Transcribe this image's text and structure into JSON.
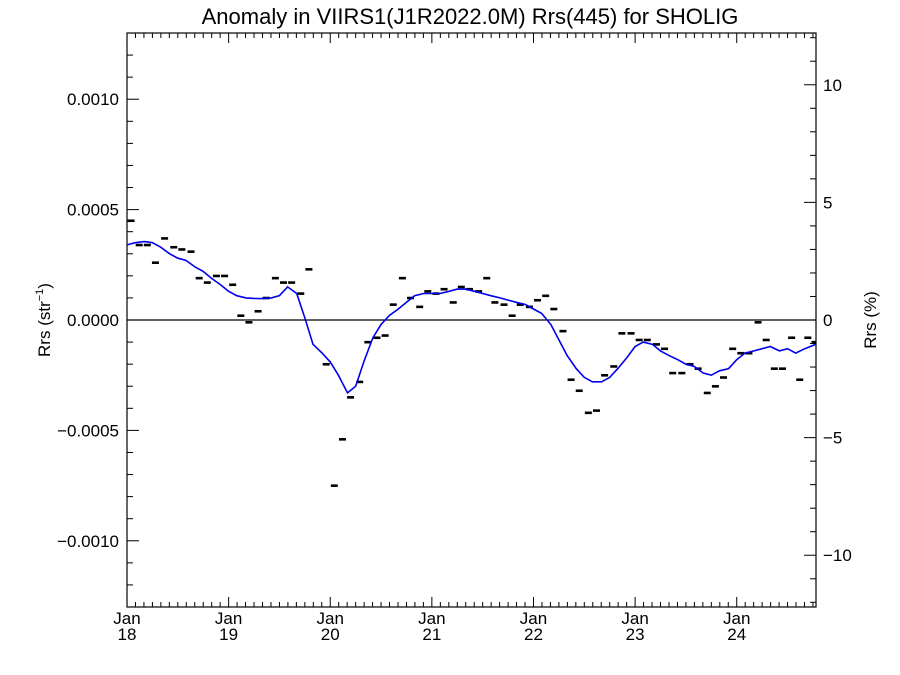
{
  "chart_data": {
    "type": "scatter",
    "title": "Anomaly in VIIRS1(J1R2022.0M) Rrs(445) for SHOLIG",
    "ylabel_left_base": "Rrs (str",
    "ylabel_left_sup": "−1",
    "ylabel_left_tail": ")",
    "ylabel_right": "Rrs (%)",
    "xlim": [
      2018.0,
      2024.78
    ],
    "ylim_left": [
      -0.0013,
      0.0013
    ],
    "ylim_right": [
      -12.2,
      12.2
    ],
    "x_ticks": [
      {
        "value": 2018,
        "month": "Jan",
        "year": "18"
      },
      {
        "value": 2019,
        "month": "Jan",
        "year": "19"
      },
      {
        "value": 2020,
        "month": "Jan",
        "year": "20"
      },
      {
        "value": 2021,
        "month": "Jan",
        "year": "21"
      },
      {
        "value": 2022,
        "month": "Jan",
        "year": "22"
      },
      {
        "value": 2023,
        "month": "Jan",
        "year": "23"
      },
      {
        "value": 2024,
        "month": "Jan",
        "year": "24"
      }
    ],
    "y_ticks_left": [
      {
        "value": 0.001,
        "label": "0.0010"
      },
      {
        "value": 0.0005,
        "label": "0.0005"
      },
      {
        "value": 0.0,
        "label": "0.0000"
      },
      {
        "value": -0.0005,
        "label": "−0.0005"
      },
      {
        "value": -0.001,
        "label": "−0.0010"
      }
    ],
    "y_ticks_right": [
      {
        "value": 10,
        "label": "10"
      },
      {
        "value": 5,
        "label": "5"
      },
      {
        "value": 0,
        "label": "0"
      },
      {
        "value": -5,
        "label": "−5"
      },
      {
        "value": -10,
        "label": "−10"
      }
    ],
    "zero_line": 0,
    "colors": {
      "points": "#000000",
      "smooth": "#0000ee",
      "zero": "#000000",
      "axes": "#000000"
    },
    "series": [
      {
        "kind": "points",
        "points": [
          [
            2018.04,
            0.00045
          ],
          [
            2018.12,
            0.00034
          ],
          [
            2018.2,
            0.00034
          ],
          [
            2018.28,
            0.00026
          ],
          [
            2018.37,
            0.00037
          ],
          [
            2018.46,
            0.00033
          ],
          [
            2018.54,
            0.00032
          ],
          [
            2018.63,
            0.00031
          ],
          [
            2018.71,
            0.00019
          ],
          [
            2018.79,
            0.00017
          ],
          [
            2018.88,
            0.0002
          ],
          [
            2018.96,
            0.0002
          ],
          [
            2019.04,
            0.00016
          ],
          [
            2019.12,
            2e-05
          ],
          [
            2019.2,
            -1e-05
          ],
          [
            2019.29,
            4e-05
          ],
          [
            2019.37,
            0.0001
          ],
          [
            2019.46,
            0.00019
          ],
          [
            2019.54,
            0.00017
          ],
          [
            2019.62,
            0.00017
          ],
          [
            2019.71,
            0.00012
          ],
          [
            2019.79,
            0.00023
          ],
          [
            2019.96,
            -0.0002
          ],
          [
            2020.04,
            -0.00075
          ],
          [
            2020.12,
            -0.00054
          ],
          [
            2020.2,
            -0.00035
          ],
          [
            2020.29,
            -0.00028
          ],
          [
            2020.37,
            -0.0001
          ],
          [
            2020.46,
            -8e-05
          ],
          [
            2020.54,
            -7e-05
          ],
          [
            2020.62,
            7e-05
          ],
          [
            2020.71,
            0.00019
          ],
          [
            2020.79,
            0.0001
          ],
          [
            2020.88,
            6e-05
          ],
          [
            2020.96,
            0.00013
          ],
          [
            2021.04,
            0.00012
          ],
          [
            2021.12,
            0.00014
          ],
          [
            2021.21,
            8e-05
          ],
          [
            2021.29,
            0.00015
          ],
          [
            2021.37,
            0.00014
          ],
          [
            2021.46,
            0.00013
          ],
          [
            2021.54,
            0.00019
          ],
          [
            2021.62,
            8e-05
          ],
          [
            2021.71,
            7e-05
          ],
          [
            2021.79,
            2e-05
          ],
          [
            2021.87,
            7e-05
          ],
          [
            2021.96,
            6e-05
          ],
          [
            2022.04,
            9e-05
          ],
          [
            2022.12,
            0.00011
          ],
          [
            2022.2,
            5e-05
          ],
          [
            2022.29,
            -5e-05
          ],
          [
            2022.37,
            -0.00027
          ],
          [
            2022.45,
            -0.00032
          ],
          [
            2022.54,
            -0.00042
          ],
          [
            2022.62,
            -0.00041
          ],
          [
            2022.7,
            -0.00025
          ],
          [
            2022.79,
            -0.00021
          ],
          [
            2022.87,
            -6e-05
          ],
          [
            2022.96,
            -6e-05
          ],
          [
            2023.04,
            -9e-05
          ],
          [
            2023.12,
            -9e-05
          ],
          [
            2023.21,
            -0.00011
          ],
          [
            2023.29,
            -0.00013
          ],
          [
            2023.37,
            -0.00024
          ],
          [
            2023.46,
            -0.00024
          ],
          [
            2023.54,
            -0.0002
          ],
          [
            2023.62,
            -0.00022
          ],
          [
            2023.71,
            -0.00033
          ],
          [
            2023.79,
            -0.0003
          ],
          [
            2023.87,
            -0.00026
          ],
          [
            2023.96,
            -0.00013
          ],
          [
            2024.04,
            -0.00015
          ],
          [
            2024.12,
            -0.00015
          ],
          [
            2024.21,
            -1e-05
          ],
          [
            2024.29,
            -9e-05
          ],
          [
            2024.37,
            -0.00022
          ],
          [
            2024.45,
            -0.00022
          ],
          [
            2024.54,
            -8e-05
          ],
          [
            2024.62,
            -0.00027
          ],
          [
            2024.7,
            -8e-05
          ],
          [
            2024.77,
            -0.0001
          ]
        ]
      },
      {
        "kind": "smooth",
        "points": [
          [
            2018.0,
            0.00034
          ],
          [
            2018.08,
            0.00035
          ],
          [
            2018.17,
            0.000355
          ],
          [
            2018.25,
            0.00035
          ],
          [
            2018.33,
            0.00033
          ],
          [
            2018.42,
            0.0003
          ],
          [
            2018.5,
            0.00028
          ],
          [
            2018.58,
            0.00027
          ],
          [
            2018.67,
            0.00024
          ],
          [
            2018.75,
            0.00022
          ],
          [
            2018.83,
            0.00019
          ],
          [
            2018.92,
            0.00016
          ],
          [
            2019.0,
            0.00013
          ],
          [
            2019.08,
            0.00011
          ],
          [
            2019.17,
            0.0001
          ],
          [
            2019.25,
            9.8e-05
          ],
          [
            2019.33,
            9.7e-05
          ],
          [
            2019.42,
            0.0001
          ],
          [
            2019.5,
            0.00011
          ],
          [
            2019.58,
            0.00015
          ],
          [
            2019.67,
            0.00012
          ],
          [
            2019.75,
            1e-05
          ],
          [
            2019.83,
            -0.00011
          ],
          [
            2019.92,
            -0.00015
          ],
          [
            2020.0,
            -0.00019
          ],
          [
            2020.08,
            -0.00025
          ],
          [
            2020.17,
            -0.00033
          ],
          [
            2020.25,
            -0.0003
          ],
          [
            2020.33,
            -0.00019
          ],
          [
            2020.42,
            -8e-05
          ],
          [
            2020.5,
            -2e-05
          ],
          [
            2020.58,
            2e-05
          ],
          [
            2020.67,
            5e-05
          ],
          [
            2020.75,
            8e-05
          ],
          [
            2020.83,
            0.00011
          ],
          [
            2020.92,
            0.00012
          ],
          [
            2021.0,
            0.00012
          ],
          [
            2021.08,
            0.00012
          ],
          [
            2021.17,
            0.00013
          ],
          [
            2021.25,
            0.00014
          ],
          [
            2021.33,
            0.00014
          ],
          [
            2021.42,
            0.00013
          ],
          [
            2021.5,
            0.00012
          ],
          [
            2021.58,
            0.00011
          ],
          [
            2021.67,
            0.0001
          ],
          [
            2021.75,
            9e-05
          ],
          [
            2021.83,
            8e-05
          ],
          [
            2021.92,
            7e-05
          ],
          [
            2022.0,
            5e-05
          ],
          [
            2022.08,
            3e-05
          ],
          [
            2022.17,
            -2e-05
          ],
          [
            2022.25,
            -9e-05
          ],
          [
            2022.33,
            -0.00016
          ],
          [
            2022.42,
            -0.00022
          ],
          [
            2022.5,
            -0.00026
          ],
          [
            2022.58,
            -0.00028
          ],
          [
            2022.67,
            -0.00028
          ],
          [
            2022.75,
            -0.00026
          ],
          [
            2022.83,
            -0.00022
          ],
          [
            2022.92,
            -0.00017
          ],
          [
            2023.0,
            -0.00012
          ],
          [
            2023.08,
            -0.0001
          ],
          [
            2023.17,
            -0.00011
          ],
          [
            2023.25,
            -0.00014
          ],
          [
            2023.33,
            -0.00016
          ],
          [
            2023.42,
            -0.00018
          ],
          [
            2023.5,
            -0.0002
          ],
          [
            2023.58,
            -0.00021
          ],
          [
            2023.67,
            -0.00024
          ],
          [
            2023.75,
            -0.00025
          ],
          [
            2023.83,
            -0.00023
          ],
          [
            2023.92,
            -0.00022
          ],
          [
            2024.0,
            -0.00018
          ],
          [
            2024.08,
            -0.00015
          ],
          [
            2024.17,
            -0.00014
          ],
          [
            2024.25,
            -0.00013
          ],
          [
            2024.33,
            -0.00012
          ],
          [
            2024.42,
            -0.00014
          ],
          [
            2024.5,
            -0.00013
          ],
          [
            2024.58,
            -0.00015
          ],
          [
            2024.67,
            -0.00013
          ],
          [
            2024.78,
            -0.00011
          ]
        ]
      }
    ]
  }
}
